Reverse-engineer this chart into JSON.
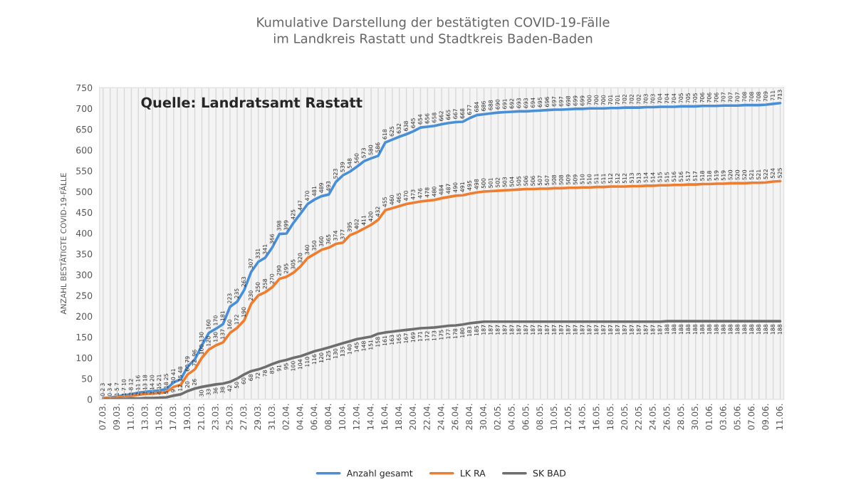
{
  "chart_data": {
    "type": "line",
    "title": "Kumulative Darstellung der bestätigten COVID-19-Fälle\nim Landkreis Rastatt und Stadtkreis Baden-Baden",
    "ylabel": "ANZAHL BESTÄTIGTE COVID-19-FÄLLE",
    "annotations": [
      "Quelle: Landratsamt Rastatt"
    ],
    "categories": [
      "07.03.",
      null,
      "09.03.",
      null,
      "11.03.",
      null,
      "13.03.",
      null,
      "15.03.",
      null,
      "17.03.",
      null,
      "19.03.",
      null,
      "21.03.",
      null,
      "23.03.",
      null,
      "25.03.",
      null,
      "27.03.",
      null,
      "29.03.",
      null,
      "31.03.",
      null,
      "02.04.",
      null,
      "04.04.",
      null,
      "06.04.",
      null,
      "08.04.",
      null,
      "10.04.",
      null,
      "12.04.",
      null,
      "14.04.",
      null,
      "16.04.",
      null,
      "18.04.",
      null,
      "20.04.",
      null,
      "22.04.",
      null,
      "24.04.",
      null,
      "26.04.",
      null,
      "28.04.",
      null,
      "30.04.",
      null,
      "02.05.",
      null,
      "04.05.",
      null,
      "06.05.",
      null,
      "08.05.",
      null,
      "10.05.",
      null,
      "12.05.",
      null,
      "14.05.",
      null,
      "16.05.",
      null,
      "18.05.",
      null,
      "20.05.",
      null,
      "22.05.",
      null,
      "24.05.",
      null,
      "26.05.",
      null,
      "28.05.",
      null,
      "30.05.",
      null,
      "01.06.",
      null,
      "03.06.",
      null,
      "05.06.",
      null,
      "07.06.",
      null,
      "09.06.",
      null,
      "11.06."
    ],
    "series": [
      {
        "name": "Anzahl gesamt",
        "color": "#4a8fd6",
        "values": [
          3,
          4,
          7,
          10,
          12,
          16,
          18,
          20,
          21,
          25,
          41,
          48,
          79,
          96,
          130,
          160,
          170,
          181,
          223,
          235,
          263,
          307,
          331,
          341,
          366,
          398,
          399,
          425,
          447,
          470,
          481,
          489,
          493,
          523,
          539,
          548,
          560,
          573,
          580,
          586,
          618,
          625,
          632,
          638,
          645,
          654,
          656,
          658,
          662,
          665,
          667,
          668,
          677,
          684,
          686,
          688,
          690,
          691,
          692,
          693,
          693,
          694,
          695,
          696,
          697,
          697,
          698,
          699,
          699,
          700,
          700,
          700,
          701,
          701,
          702,
          702,
          702,
          703,
          703,
          704,
          704,
          704,
          705,
          705,
          705,
          706,
          706,
          706,
          707,
          707,
          707,
          708,
          708,
          708,
          709,
          711,
          713
        ]
      },
      {
        "name": "LK RA",
        "color": "#ed7d31",
        "values": [
          2,
          3,
          5,
          7,
          8,
          11,
          13,
          14,
          15,
          18,
          30,
          35,
          60,
          72,
          100,
          120,
          130,
          137,
          160,
          172,
          190,
          230,
          250,
          258,
          270,
          290,
          295,
          305,
          320,
          340,
          350,
          360,
          365,
          374,
          377,
          395,
          402,
          411,
          420,
          432,
          455,
          460,
          465,
          470,
          473,
          476,
          478,
          480,
          484,
          487,
          490,
          491,
          495,
          498,
          500,
          501,
          502,
          503,
          504,
          505,
          506,
          506,
          507,
          507,
          508,
          508,
          509,
          509,
          510,
          510,
          511,
          511,
          512,
          512,
          512,
          513,
          513,
          514,
          514,
          515,
          515,
          516,
          516,
          517,
          517,
          518,
          518,
          519,
          519,
          520,
          520,
          520,
          521,
          521,
          522,
          524,
          525
        ]
      },
      {
        "name": "SK BAD",
        "color": "#6e6e6e",
        "values": [
          0,
          0,
          1,
          1,
          2,
          2,
          3,
          3,
          4,
          5,
          9,
          12,
          20,
          26,
          30,
          33,
          36,
          38,
          42,
          50,
          60,
          68,
          72,
          78,
          85,
          91,
          95,
          100,
          104,
          110,
          116,
          120,
          125,
          130,
          135,
          140,
          145,
          148,
          151,
          158,
          161,
          163,
          165,
          167,
          169,
          171,
          172,
          173,
          175,
          177,
          178,
          180,
          183,
          185,
          187,
          187,
          187,
          187,
          187,
          187,
          187,
          187,
          187,
          187,
          187,
          187,
          187,
          187,
          187,
          187,
          187,
          187,
          187,
          187,
          187,
          187,
          187,
          187,
          187,
          187,
          188,
          188,
          188,
          188,
          188,
          188,
          188,
          188,
          188,
          188,
          188,
          188,
          188,
          188,
          188,
          188,
          188
        ]
      }
    ],
    "ylim": [
      0,
      750
    ],
    "yticks": [
      0,
      50,
      100,
      150,
      200,
      250,
      300,
      350,
      400,
      450,
      500,
      550,
      600,
      650,
      700,
      750
    ],
    "grid": "x",
    "legend": "bottom",
    "data_labels": true
  }
}
